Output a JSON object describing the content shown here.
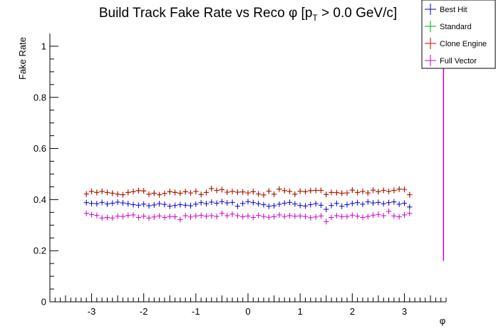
{
  "chart_data": {
    "type": "scatter",
    "title": "Build Track Fake Rate vs Reco φ [p",
    "title_sub": "T",
    "title_tail": " > 0.0 GeV/c]",
    "xlabel": "φ",
    "ylabel": "Fake Rate",
    "xlim": [
      -3.8,
      3.8
    ],
    "ylim": [
      0,
      1.05
    ],
    "x_ticks": [
      -3,
      -2,
      -1,
      0,
      1,
      2,
      3
    ],
    "x_tick_labels": [
      "-3",
      "-2",
      "-1",
      "0",
      "1",
      "2",
      "3"
    ],
    "y_ticks": [
      0,
      0.2,
      0.4,
      0.6,
      0.8,
      1
    ],
    "y_tick_labels": [
      "0",
      "0.2",
      "0.4",
      "0.6",
      "0.8",
      "1"
    ],
    "legend_position": "top-right",
    "bin_half_width": 0.0497,
    "x": [
      -3.1,
      -3.0,
      -2.9,
      -2.8,
      -2.7,
      -2.6,
      -2.5,
      -2.4,
      -2.3,
      -2.2,
      -2.1,
      -2.0,
      -1.9,
      -1.8,
      -1.7,
      -1.6,
      -1.5,
      -1.4,
      -1.3,
      -1.2,
      -1.1,
      -1.0,
      -0.9,
      -0.8,
      -0.7,
      -0.6,
      -0.5,
      -0.4,
      -0.3,
      -0.2,
      -0.1,
      0.0,
      0.1,
      0.2,
      0.3,
      0.4,
      0.5,
      0.6,
      0.7,
      0.8,
      0.9,
      1.0,
      1.1,
      1.2,
      1.3,
      1.4,
      1.5,
      1.6,
      1.7,
      1.8,
      1.9,
      2.0,
      2.1,
      2.2,
      2.3,
      2.4,
      2.5,
      2.6,
      2.7,
      2.8,
      2.9,
      3.0,
      3.1
    ],
    "series": [
      {
        "name": "Best Hit",
        "color": "#0000cc",
        "values": [
          0.388,
          0.385,
          0.384,
          0.389,
          0.383,
          0.386,
          0.39,
          0.387,
          0.384,
          0.38,
          0.378,
          0.382,
          0.376,
          0.379,
          0.384,
          0.381,
          0.374,
          0.377,
          0.38,
          0.378,
          0.376,
          0.382,
          0.388,
          0.384,
          0.39,
          0.386,
          0.392,
          0.387,
          0.389,
          0.374,
          0.385,
          0.392,
          0.388,
          0.384,
          0.38,
          0.374,
          0.376,
          0.382,
          0.386,
          0.389,
          0.383,
          0.377,
          0.375,
          0.38,
          0.384,
          0.378,
          0.362,
          0.377,
          0.385,
          0.374,
          0.38,
          0.385,
          0.388,
          0.382,
          0.391,
          0.387,
          0.389,
          0.384,
          0.388,
          0.391,
          0.382,
          0.386,
          0.371
        ]
      },
      {
        "name": "Standard",
        "color": "#00aa00",
        "values": [
          0.422,
          0.432,
          0.428,
          0.432,
          0.428,
          0.425,
          0.421,
          0.419,
          0.428,
          0.431,
          0.435,
          0.434,
          0.421,
          0.425,
          0.419,
          0.424,
          0.431,
          0.428,
          0.425,
          0.431,
          0.426,
          0.432,
          0.42,
          0.428,
          0.443,
          0.436,
          0.439,
          0.429,
          0.432,
          0.429,
          0.43,
          0.426,
          0.431,
          0.422,
          0.418,
          0.433,
          0.421,
          0.441,
          0.435,
          0.432,
          0.421,
          0.433,
          0.431,
          0.435,
          0.436,
          0.436,
          0.42,
          0.428,
          0.427,
          0.425,
          0.426,
          0.437,
          0.428,
          0.432,
          0.426,
          0.437,
          0.431,
          0.436,
          0.432,
          0.436,
          0.441,
          0.44,
          0.419
        ]
      },
      {
        "name": "Clone Engine",
        "color": "#cc0000",
        "values": [
          0.422,
          0.432,
          0.428,
          0.432,
          0.428,
          0.425,
          0.421,
          0.419,
          0.428,
          0.431,
          0.435,
          0.434,
          0.421,
          0.425,
          0.419,
          0.424,
          0.431,
          0.428,
          0.425,
          0.431,
          0.426,
          0.432,
          0.42,
          0.428,
          0.443,
          0.436,
          0.439,
          0.429,
          0.432,
          0.429,
          0.43,
          0.426,
          0.431,
          0.422,
          0.418,
          0.433,
          0.421,
          0.441,
          0.435,
          0.432,
          0.421,
          0.433,
          0.431,
          0.435,
          0.436,
          0.436,
          0.42,
          0.428,
          0.427,
          0.425,
          0.426,
          0.437,
          0.428,
          0.432,
          0.426,
          0.437,
          0.431,
          0.436,
          0.432,
          0.436,
          0.441,
          0.44,
          0.419
        ]
      },
      {
        "name": "Full Vector",
        "color": "#cc00cc",
        "values": [
          0.346,
          0.341,
          0.338,
          0.328,
          0.33,
          0.328,
          0.335,
          0.334,
          0.338,
          0.34,
          0.33,
          0.335,
          0.328,
          0.332,
          0.336,
          0.33,
          0.334,
          0.333,
          0.322,
          0.337,
          0.332,
          0.336,
          0.338,
          0.335,
          0.337,
          0.334,
          0.346,
          0.337,
          0.343,
          0.337,
          0.333,
          0.336,
          0.33,
          0.338,
          0.334,
          0.331,
          0.333,
          0.34,
          0.334,
          0.337,
          0.335,
          0.336,
          0.334,
          0.329,
          0.332,
          0.336,
          0.314,
          0.33,
          0.337,
          0.333,
          0.334,
          0.339,
          0.335,
          0.33,
          0.334,
          0.339,
          0.342,
          0.337,
          0.354,
          0.336,
          0.333,
          0.34,
          0.346
        ]
      }
    ],
    "extra_segment": {
      "series": "Full Vector",
      "x": 3.75,
      "y_low": 0.16,
      "y_high": 1.05
    }
  },
  "legend": {
    "items": [
      {
        "label": "Best Hit",
        "color": "#0000cc"
      },
      {
        "label": "Standard",
        "color": "#00aa00"
      },
      {
        "label": "Clone Engine",
        "color": "#cc0000"
      },
      {
        "label": "Full Vector",
        "color": "#cc00cc"
      }
    ]
  }
}
